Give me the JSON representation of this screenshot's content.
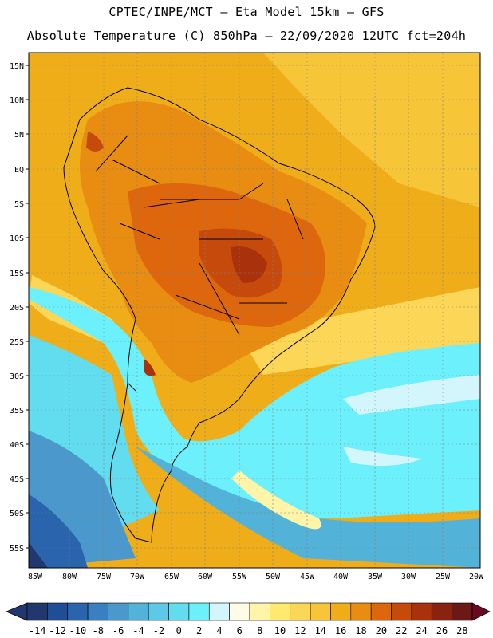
{
  "header": {
    "line1": "CPTEC/INPE/MCT –  Eta Model 15km – GFS",
    "line2": "Absolute Temperature (C) 850hPa – 22/09/2020 12UTC fct=204h"
  },
  "map": {
    "lat_labels": [
      "15N",
      "10N",
      "5N",
      "EQ",
      "5S",
      "10S",
      "15S",
      "20S",
      "25S",
      "30S",
      "35S",
      "40S",
      "45S",
      "50S",
      "55S"
    ],
    "lon_labels": [
      "85W",
      "80W",
      "75W",
      "70W",
      "65W",
      "60W",
      "55W",
      "50W",
      "45W",
      "40W",
      "35W",
      "30W",
      "25W",
      "20W"
    ]
  },
  "colorbar": {
    "labels": [
      "-14",
      "-12",
      "-10",
      "-8",
      "-6",
      "-4",
      "-2",
      "0",
      "2",
      "4",
      "6",
      "8",
      "10",
      "12",
      "14",
      "16",
      "18",
      "20",
      "22",
      "24",
      "26",
      "28"
    ],
    "colors": [
      "#20386e",
      "#1f4e96",
      "#2a64ad",
      "#3a7fbf",
      "#4a98cc",
      "#52b2d8",
      "#5dc9e6",
      "#62dcef",
      "#6cf0fb",
      "#d2f6fc",
      "#fffbe6",
      "#fff4a8",
      "#ffe96e",
      "#fcd757",
      "#f6c538",
      "#f0ad1a",
      "#e88c12",
      "#de660c",
      "#c64a0c",
      "#a9310c",
      "#8a2210",
      "#6b1816"
    ],
    "under_color": "#20386e",
    "over_color": "#6b0a1e"
  }
}
